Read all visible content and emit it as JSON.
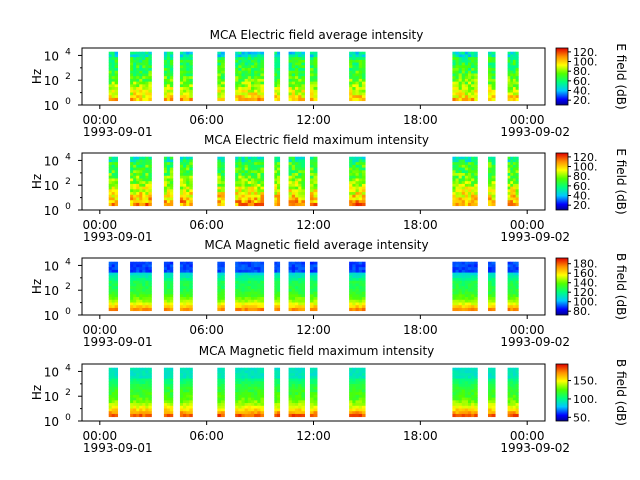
{
  "chart_data": [
    {
      "type": "heatmap",
      "title": "MCA  Electric field average intensity",
      "ylabel": "Hz",
      "colorbar_label": "E field (dB)",
      "colorbar_ticks": [
        "20.",
        "40.",
        "60.",
        "80.",
        "100.",
        "120."
      ],
      "colorbar_range": [
        10,
        128
      ],
      "xlim_hours": [
        -1,
        25
      ],
      "ylim_log10": [
        0,
        4.6
      ],
      "ytick_labels": [
        {
          "base": "10",
          "exp": "0"
        },
        {
          "base": "10",
          "exp": "2"
        },
        {
          "base": "10",
          "exp": "4"
        }
      ],
      "xtick_labels": [
        {
          "time": "00:00",
          "date": "1993-09-01"
        },
        {
          "time": "06:00",
          "date": ""
        },
        {
          "time": "12:00",
          "date": ""
        },
        {
          "time": "18:00",
          "date": ""
        },
        {
          "time": "00:00",
          "date": "1993-09-02"
        }
      ],
      "data_intervals_hours": [
        [
          0.5,
          1.0
        ],
        [
          1.7,
          2.9
        ],
        [
          3.6,
          4.1
        ],
        [
          4.5,
          5.2
        ],
        [
          6.6,
          7.0
        ],
        [
          7.6,
          9.2
        ],
        [
          9.8,
          10.1
        ],
        [
          10.6,
          11.5
        ],
        [
          11.8,
          12.2
        ],
        [
          14.0,
          14.9
        ],
        [
          19.8,
          21.2
        ],
        [
          21.8,
          22.2
        ],
        [
          22.9,
          23.5
        ]
      ],
      "profile": "electric-average"
    },
    {
      "type": "heatmap",
      "title": "MCA  Electric field maximum intensity",
      "ylabel": "Hz",
      "colorbar_label": "E field (dB)",
      "colorbar_ticks": [
        "20.",
        "40.",
        "60.",
        "80.",
        "100.",
        "120."
      ],
      "colorbar_range": [
        10,
        128
      ],
      "xlim_hours": [
        -1,
        25
      ],
      "ylim_log10": [
        0,
        4.6
      ],
      "ytick_labels": [
        {
          "base": "10",
          "exp": "0"
        },
        {
          "base": "10",
          "exp": "2"
        },
        {
          "base": "10",
          "exp": "4"
        }
      ],
      "xtick_labels": [
        {
          "time": "00:00",
          "date": "1993-09-01"
        },
        {
          "time": "06:00",
          "date": ""
        },
        {
          "time": "12:00",
          "date": ""
        },
        {
          "time": "18:00",
          "date": ""
        },
        {
          "time": "00:00",
          "date": "1993-09-02"
        }
      ],
      "data_intervals_hours": [
        [
          0.5,
          1.0
        ],
        [
          1.7,
          2.9
        ],
        [
          3.6,
          4.1
        ],
        [
          4.5,
          5.2
        ],
        [
          6.6,
          7.0
        ],
        [
          7.6,
          9.2
        ],
        [
          9.8,
          10.1
        ],
        [
          10.6,
          11.5
        ],
        [
          11.8,
          12.2
        ],
        [
          14.0,
          14.9
        ],
        [
          19.8,
          21.2
        ],
        [
          21.8,
          22.2
        ],
        [
          22.9,
          23.5
        ]
      ],
      "profile": "electric-maximum"
    },
    {
      "type": "heatmap",
      "title": "MCA  Magnetic field average intensity",
      "ylabel": "Hz",
      "colorbar_label": "B field (dB)",
      "colorbar_ticks": [
        "80.",
        "100.",
        "120.",
        "140.",
        "160.",
        "180."
      ],
      "colorbar_range": [
        72,
        192
      ],
      "xlim_hours": [
        -1,
        25
      ],
      "ylim_log10": [
        0,
        4.6
      ],
      "ytick_labels": [
        {
          "base": "10",
          "exp": "0"
        },
        {
          "base": "10",
          "exp": "2"
        },
        {
          "base": "10",
          "exp": "4"
        }
      ],
      "xtick_labels": [
        {
          "time": "00:00",
          "date": "1993-09-01"
        },
        {
          "time": "06:00",
          "date": ""
        },
        {
          "time": "12:00",
          "date": ""
        },
        {
          "time": "18:00",
          "date": ""
        },
        {
          "time": "00:00",
          "date": "1993-09-02"
        }
      ],
      "data_intervals_hours": [
        [
          0.5,
          1.0
        ],
        [
          1.7,
          2.9
        ],
        [
          3.6,
          4.1
        ],
        [
          4.5,
          5.2
        ],
        [
          6.6,
          7.0
        ],
        [
          7.6,
          9.2
        ],
        [
          9.8,
          10.1
        ],
        [
          10.6,
          11.5
        ],
        [
          11.8,
          12.2
        ],
        [
          14.0,
          14.9
        ],
        [
          19.8,
          21.2
        ],
        [
          21.8,
          22.2
        ],
        [
          22.9,
          23.5
        ]
      ],
      "profile": "magnetic-average"
    },
    {
      "type": "heatmap",
      "title": "MCA  Magnetic field maximum intensity",
      "ylabel": "Hz",
      "colorbar_label": "B field (dB)",
      "colorbar_ticks": [
        "50.",
        "100.",
        "150."
      ],
      "colorbar_range": [
        40,
        195
      ],
      "xlim_hours": [
        -1,
        25
      ],
      "ylim_log10": [
        0,
        4.6
      ],
      "ytick_labels": [
        {
          "base": "10",
          "exp": "0"
        },
        {
          "base": "10",
          "exp": "2"
        },
        {
          "base": "10",
          "exp": "4"
        }
      ],
      "xtick_labels": [
        {
          "time": "00:00",
          "date": "1993-09-01"
        },
        {
          "time": "06:00",
          "date": ""
        },
        {
          "time": "12:00",
          "date": ""
        },
        {
          "time": "18:00",
          "date": ""
        },
        {
          "time": "00:00",
          "date": "1993-09-02"
        }
      ],
      "data_intervals_hours": [
        [
          0.5,
          1.0
        ],
        [
          1.7,
          2.9
        ],
        [
          3.6,
          4.1
        ],
        [
          4.5,
          5.2
        ],
        [
          6.6,
          7.0
        ],
        [
          7.6,
          9.2
        ],
        [
          9.8,
          10.1
        ],
        [
          10.6,
          11.5
        ],
        [
          11.8,
          12.2
        ],
        [
          14.0,
          14.9
        ],
        [
          19.8,
          21.2
        ],
        [
          21.8,
          22.2
        ],
        [
          22.9,
          23.5
        ]
      ],
      "profile": "magnetic-maximum"
    }
  ]
}
